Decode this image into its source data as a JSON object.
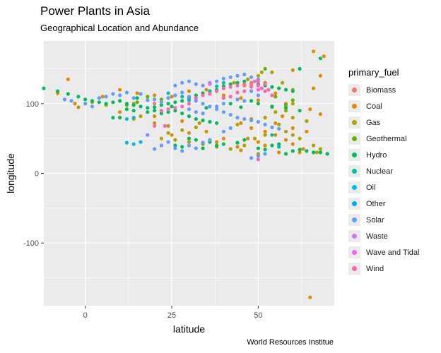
{
  "chart_data": {
    "type": "scatter",
    "title": "Power Plants in Asia",
    "subtitle": "Geographical Location and Abundance",
    "xlabel": "latitude",
    "ylabel": "longitude",
    "caption": "World Resources Institue",
    "xlim": [
      -12,
      72
    ],
    "ylim": [
      -190,
      190
    ],
    "x_ticks": [
      0,
      25,
      50
    ],
    "y_ticks": [
      -100,
      0,
      100
    ],
    "grid": true,
    "legend": {
      "title": "primary_fuel",
      "position": "right",
      "items": [
        {
          "label": "Biomass",
          "color": "#F8766D"
        },
        {
          "label": "Coal",
          "color": "#DB8E00"
        },
        {
          "label": "Gas",
          "color": "#AEA200"
        },
        {
          "label": "Geothermal",
          "color": "#64B200"
        },
        {
          "label": "Hydro",
          "color": "#00BD5C"
        },
        {
          "label": "Nuclear",
          "color": "#00C1A7"
        },
        {
          "label": "Oil",
          "color": "#00BADE"
        },
        {
          "label": "Other",
          "color": "#00A6FF"
        },
        {
          "label": "Solar",
          "color": "#619CFF"
        },
        {
          "label": "Waste",
          "color": "#C77CFF"
        },
        {
          "label": "Wave and Tidal",
          "color": "#F564E3"
        },
        {
          "label": "Wind",
          "color": "#FF64B0"
        }
      ]
    },
    "series": [
      {
        "name": "Coal",
        "points": [
          [
            66,
            175
          ],
          [
            69,
            168
          ],
          [
            60,
            148
          ],
          [
            66,
            122
          ],
          [
            68,
            140
          ],
          [
            55,
            115
          ],
          [
            58,
            100
          ],
          [
            50,
            105
          ],
          [
            54,
            95
          ],
          [
            57,
            82
          ],
          [
            65,
            92
          ],
          [
            68,
            85
          ],
          [
            45,
            72
          ],
          [
            48,
            65
          ],
          [
            52,
            60
          ],
          [
            55,
            55
          ],
          [
            58,
            48
          ],
          [
            60,
            42
          ],
          [
            63,
            35
          ],
          [
            47,
            50
          ],
          [
            50,
            45
          ],
          [
            35,
            60
          ],
          [
            30,
            58
          ],
          [
            25,
            55
          ],
          [
            40,
            50
          ],
          [
            44,
            38
          ],
          [
            38,
            45
          ],
          [
            -5,
            135
          ],
          [
            -8,
            115
          ],
          [
            -3,
            100
          ],
          [
            5,
            110
          ],
          [
            10,
            120
          ],
          [
            15,
            115
          ],
          [
            20,
            112
          ],
          [
            25,
            110
          ],
          [
            30,
            118
          ],
          [
            35,
            120
          ],
          [
            40,
            112
          ],
          [
            45,
            108
          ],
          [
            52,
            40
          ],
          [
            56,
            30
          ],
          [
            62,
            30
          ],
          [
            65,
            -178
          ],
          [
            10,
            88
          ],
          [
            14,
            78
          ],
          [
            20,
            82
          ],
          [
            28,
            75
          ],
          [
            33,
            72
          ],
          [
            55,
            72
          ],
          [
            60,
            65
          ],
          [
            64,
            60
          ],
          [
            50,
            28
          ],
          [
            45,
            33
          ]
        ]
      },
      {
        "name": "Gas",
        "points": [
          [
            54,
            145
          ],
          [
            50,
            140
          ],
          [
            47,
            135
          ],
          [
            43,
            130
          ],
          [
            57,
            130
          ],
          [
            60,
            120
          ],
          [
            52,
            130
          ],
          [
            56,
            70
          ],
          [
            60,
            80
          ],
          [
            64,
            75
          ],
          [
            58,
            60
          ],
          [
            62,
            50
          ],
          [
            66,
            40
          ],
          [
            67,
            30
          ],
          [
            52,
            55
          ],
          [
            49,
            50
          ],
          [
            46,
            40
          ],
          [
            42,
            35
          ],
          [
            38,
            38
          ],
          [
            34,
            42
          ],
          [
            30,
            45
          ],
          [
            26,
            48
          ],
          [
            22,
            50
          ],
          [
            24,
            58
          ],
          [
            28,
            62
          ],
          [
            32,
            66
          ],
          [
            60,
            100
          ],
          [
            55,
            88
          ],
          [
            52,
            80
          ],
          [
            58,
            90
          ],
          [
            -2,
            95
          ],
          [
            2,
            102
          ],
          [
            6,
            98
          ],
          [
            14,
            100
          ],
          [
            16,
            82
          ],
          [
            20,
            72
          ],
          [
            24,
            68
          ],
          [
            44,
            70
          ],
          [
            48,
            78
          ],
          [
            60,
            55
          ],
          [
            68,
            35
          ],
          [
            51,
            145
          ]
        ]
      },
      {
        "name": "Geothermal",
        "points": [
          [
            55,
            110
          ],
          [
            60,
            105
          ],
          [
            58,
            98
          ],
          [
            12,
            98
          ],
          [
            15,
            102
          ],
          [
            18,
            110
          ],
          [
            22,
            106
          ],
          [
            52,
            150
          ]
        ]
      },
      {
        "name": "Hydro",
        "points": [
          [
            -12,
            122
          ],
          [
            -8,
            118
          ],
          [
            -5,
            114
          ],
          [
            -2,
            110
          ],
          [
            0,
            106
          ],
          [
            2,
            104
          ],
          [
            4,
            102
          ],
          [
            6,
            100
          ],
          [
            8,
            102
          ],
          [
            10,
            104
          ],
          [
            12,
            100
          ],
          [
            14,
            98
          ],
          [
            16,
            96
          ],
          [
            18,
            94
          ],
          [
            20,
            95
          ],
          [
            22,
            98
          ],
          [
            24,
            100
          ],
          [
            26,
            102
          ],
          [
            28,
            104
          ],
          [
            30,
            108
          ],
          [
            32,
            112
          ],
          [
            34,
            115
          ],
          [
            36,
            118
          ],
          [
            38,
            120
          ],
          [
            40,
            125
          ],
          [
            42,
            128
          ],
          [
            44,
            130
          ],
          [
            46,
            132
          ],
          [
            48,
            130
          ],
          [
            50,
            128
          ],
          [
            52,
            126
          ],
          [
            54,
            124
          ],
          [
            56,
            122
          ],
          [
            58,
            120
          ],
          [
            60,
            118
          ],
          [
            28,
            86
          ],
          [
            30,
            82
          ],
          [
            32,
            78
          ],
          [
            34,
            76
          ],
          [
            36,
            74
          ],
          [
            38,
            72
          ],
          [
            26,
            90
          ],
          [
            24,
            88
          ],
          [
            22,
            86
          ],
          [
            20,
            90
          ],
          [
            18,
            88
          ],
          [
            14,
            90
          ],
          [
            12,
            92
          ],
          [
            50,
            100
          ],
          [
            54,
            96
          ],
          [
            58,
            94
          ],
          [
            62,
            90
          ],
          [
            64,
            32
          ],
          [
            66,
            30
          ],
          [
            68,
            30
          ],
          [
            70,
            28
          ],
          [
            58,
            28
          ],
          [
            60,
            32
          ],
          [
            62,
            34
          ],
          [
            50,
            36
          ],
          [
            52,
            34
          ],
          [
            54,
            40
          ],
          [
            56,
            42
          ],
          [
            30,
            50
          ],
          [
            32,
            48
          ],
          [
            36,
            45
          ],
          [
            40,
            42
          ],
          [
            26,
            40
          ],
          [
            28,
            38
          ],
          [
            34,
            36
          ],
          [
            38,
            40
          ],
          [
            44,
            44
          ],
          [
            46,
            48
          ],
          [
            62,
            150
          ],
          [
            68,
            165
          ],
          [
            10,
            80
          ],
          [
            8,
            80
          ],
          [
            15,
            108
          ],
          [
            25,
            96
          ],
          [
            35,
            94
          ],
          [
            45,
            95
          ],
          [
            42,
            100
          ],
          [
            48,
            104
          ]
        ]
      },
      {
        "name": "Nuclear",
        "points": [
          [
            36,
            118
          ],
          [
            38,
            125
          ],
          [
            40,
            130
          ],
          [
            24,
            115
          ],
          [
            28,
            110
          ],
          [
            30,
            105
          ],
          [
            54,
            55
          ],
          [
            56,
            38
          ]
        ]
      },
      {
        "name": "Oil",
        "points": [
          [
            12,
            44
          ],
          [
            14,
            42
          ],
          [
            16,
            45
          ],
          [
            12,
            78
          ],
          [
            14,
            80
          ]
        ]
      },
      {
        "name": "Solar",
        "points": [
          [
            6,
            110
          ],
          [
            10,
            112
          ],
          [
            14,
            108
          ],
          [
            18,
            105
          ],
          [
            22,
            102
          ],
          [
            24,
            108
          ],
          [
            26,
            112
          ],
          [
            28,
            116
          ],
          [
            30,
            110
          ],
          [
            32,
            104
          ],
          [
            34,
            100
          ],
          [
            36,
            96
          ],
          [
            38,
            92
          ],
          [
            40,
            88
          ],
          [
            42,
            84
          ],
          [
            44,
            80
          ],
          [
            46,
            78
          ],
          [
            48,
            76
          ],
          [
            50,
            74
          ],
          [
            52,
            70
          ],
          [
            54,
            66
          ],
          [
            56,
            64
          ],
          [
            20,
            106
          ],
          [
            16,
            114
          ],
          [
            12,
            116
          ],
          [
            8,
            114
          ],
          [
            4,
            108
          ],
          [
            0,
            100
          ],
          [
            -4,
            104
          ],
          [
            -6,
            106
          ],
          [
            2,
            96
          ],
          [
            30,
            92
          ],
          [
            32,
            88
          ],
          [
            34,
            86
          ],
          [
            38,
            96
          ],
          [
            40,
            100
          ],
          [
            44,
            106
          ],
          [
            46,
            104
          ],
          [
            48,
            118
          ],
          [
            50,
            112
          ],
          [
            26,
            36
          ],
          [
            28,
            32
          ],
          [
            32,
            36
          ],
          [
            30,
            40
          ],
          [
            34,
            44
          ],
          [
            36,
            48
          ],
          [
            24,
            45
          ],
          [
            22,
            40
          ],
          [
            20,
            35
          ],
          [
            50,
            25
          ],
          [
            48,
            22
          ],
          [
            52,
            28
          ],
          [
            18,
            55
          ],
          [
            40,
            60
          ],
          [
            42,
            65
          ],
          [
            26,
            126
          ],
          [
            28,
            130
          ],
          [
            30,
            132
          ],
          [
            32,
            128
          ],
          [
            34,
            126
          ],
          [
            36,
            130
          ],
          [
            38,
            132
          ],
          [
            40,
            136
          ],
          [
            42,
            138
          ],
          [
            44,
            140
          ],
          [
            46,
            142
          ],
          [
            48,
            138
          ],
          [
            50,
            135
          ]
        ]
      },
      {
        "name": "Wave and Tidal",
        "points": [
          [
            36,
            128
          ],
          [
            50,
            120
          ]
        ]
      },
      {
        "name": "Wind",
        "points": [
          [
            40,
            122
          ],
          [
            42,
            124
          ],
          [
            44,
            126
          ],
          [
            46,
            128
          ],
          [
            48,
            130
          ],
          [
            50,
            132
          ],
          [
            52,
            128
          ],
          [
            38,
            118
          ],
          [
            36,
            114
          ],
          [
            34,
            112
          ],
          [
            32,
            108
          ],
          [
            30,
            100
          ],
          [
            28,
            96
          ],
          [
            26,
            94
          ],
          [
            24,
            92
          ],
          [
            22,
            90
          ],
          [
            44,
            116
          ],
          [
            46,
            118
          ],
          [
            48,
            124
          ],
          [
            50,
            126
          ],
          [
            52,
            118
          ],
          [
            54,
            112
          ],
          [
            40,
            108
          ],
          [
            42,
            110
          ],
          [
            20,
            68
          ],
          [
            23,
            68
          ],
          [
            49,
            132
          ],
          [
            51,
            122
          ],
          [
            53,
            120
          ],
          [
            50,
            20
          ]
        ]
      },
      {
        "name": "Biomass",
        "points": [
          [
            46,
            126
          ],
          [
            48,
            128
          ],
          [
            20,
            100
          ]
        ]
      }
    ]
  }
}
